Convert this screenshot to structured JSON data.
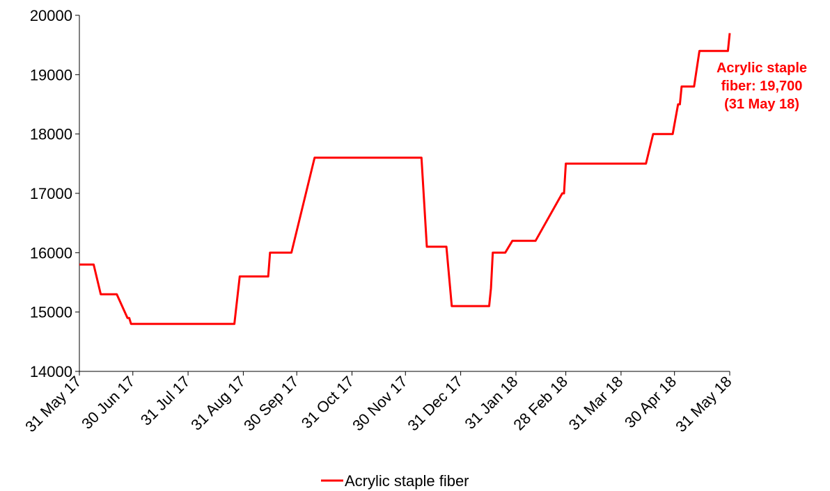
{
  "chart_data": {
    "type": "line",
    "title": "",
    "xlabel": "",
    "ylabel": "",
    "ylim": [
      14000,
      20000
    ],
    "yticks": [
      "14000",
      "15000",
      "16000",
      "17000",
      "18000",
      "19000",
      "20000"
    ],
    "x_tick_labels": [
      "31 May 17",
      "30 Jun 17",
      "31 Jul 17",
      "31 Aug 17",
      "30 Sep 17",
      "31 Oct 17",
      "30 Nov 17",
      "31 Dec 17",
      "31 Jan 18",
      "28 Feb 18",
      "31 Mar 18",
      "30 Apr 18",
      "31 May 18"
    ],
    "x_tick_dates": [
      "2017-05-31",
      "2017-06-30",
      "2017-07-31",
      "2017-08-31",
      "2017-09-30",
      "2017-10-31",
      "2017-11-30",
      "2017-12-31",
      "2018-01-31",
      "2018-02-28",
      "2018-03-31",
      "2018-04-30",
      "2018-05-31"
    ],
    "xlim": [
      "2017-05-31",
      "2018-05-31"
    ],
    "grid": false,
    "legend_position": "bottom",
    "series": [
      {
        "name": "Acrylic staple fiber",
        "color": "#ff0000",
        "points": [
          [
            "2017-05-31",
            15800
          ],
          [
            "2017-06-08",
            15800
          ],
          [
            "2017-06-12",
            15300
          ],
          [
            "2017-06-21",
            15300
          ],
          [
            "2017-06-27",
            14900
          ],
          [
            "2017-06-28",
            14900
          ],
          [
            "2017-06-29",
            14800
          ],
          [
            "2017-08-26",
            14800
          ],
          [
            "2017-08-29",
            15600
          ],
          [
            "2017-09-14",
            15600
          ],
          [
            "2017-09-15",
            16000
          ],
          [
            "2017-09-27",
            16000
          ],
          [
            "2017-10-10",
            17600
          ],
          [
            "2017-12-09",
            17600
          ],
          [
            "2017-12-12",
            16100
          ],
          [
            "2017-12-23",
            16100
          ],
          [
            "2017-12-26",
            15100
          ],
          [
            "2018-01-16",
            15100
          ],
          [
            "2018-01-17",
            15400
          ],
          [
            "2018-01-18",
            16000
          ],
          [
            "2018-01-25",
            16000
          ],
          [
            "2018-01-29",
            16200
          ],
          [
            "2018-02-11",
            16200
          ],
          [
            "2018-02-26",
            17000
          ],
          [
            "2018-02-27",
            17000
          ],
          [
            "2018-02-28",
            17500
          ],
          [
            "2018-04-14",
            17500
          ],
          [
            "2018-04-18",
            18000
          ],
          [
            "2018-04-29",
            18000
          ],
          [
            "2018-05-02",
            18500
          ],
          [
            "2018-05-03",
            18500
          ],
          [
            "2018-05-04",
            18800
          ],
          [
            "2018-05-11",
            18800
          ],
          [
            "2018-05-14",
            19400
          ],
          [
            "2018-05-30",
            19400
          ],
          [
            "2018-05-31",
            19700
          ]
        ]
      }
    ],
    "annotation": {
      "lines": [
        "Acrylic staple",
        "fiber: 19,700",
        "(31 May 18)"
      ],
      "color": "#ff0000"
    },
    "legend": {
      "items": [
        {
          "label": "Acrylic staple fiber",
          "color": "#ff0000"
        }
      ]
    }
  }
}
